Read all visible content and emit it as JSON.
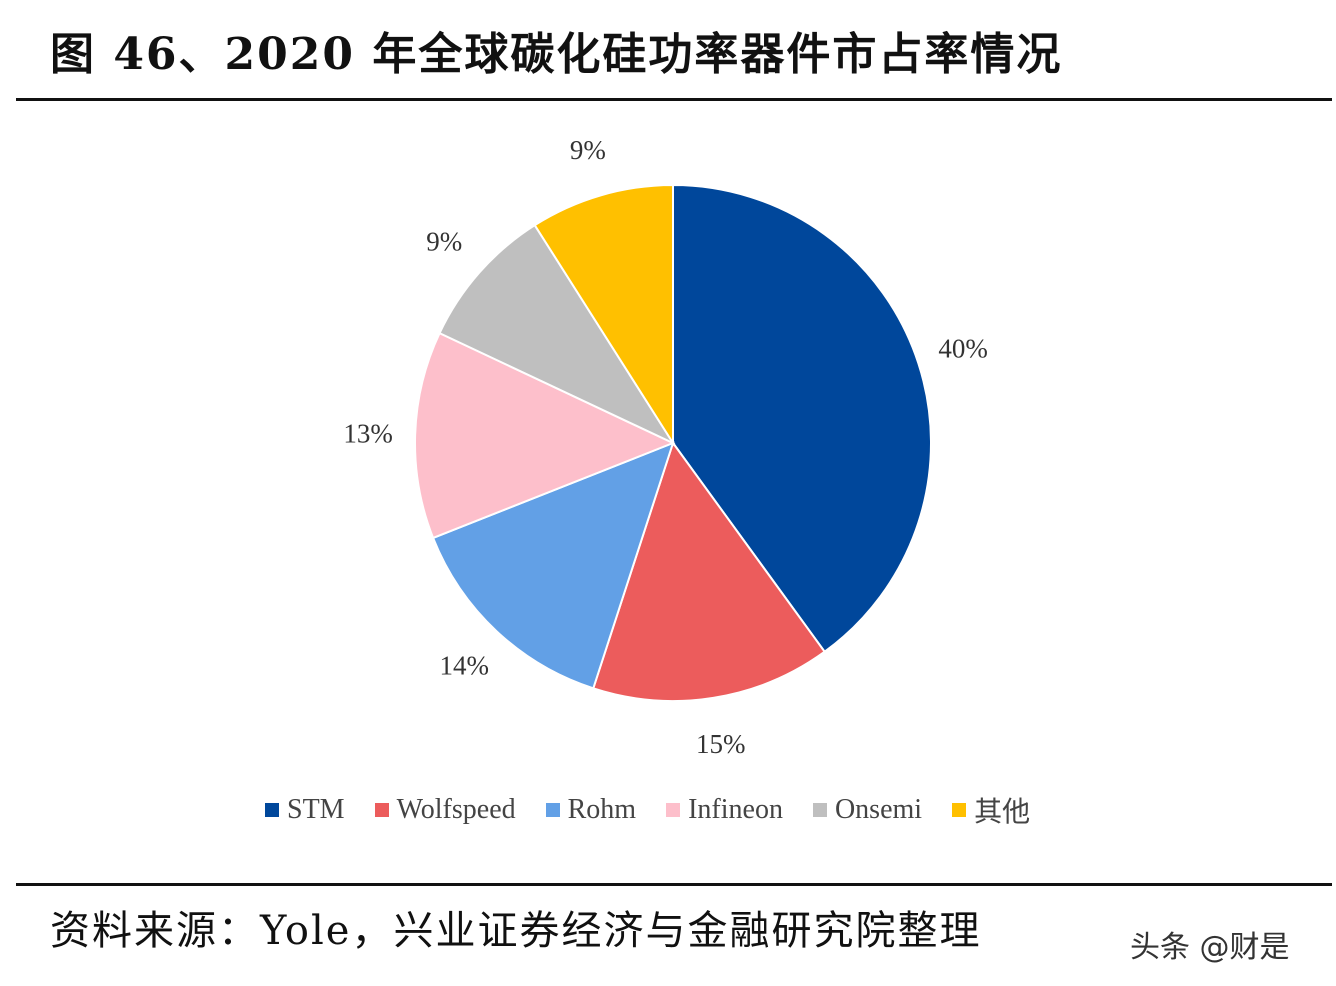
{
  "title": "图 46、2020 年全球碳化硅功率器件市占率情况",
  "source": "资料来源：Yole，兴业证券经济与金融研究院整理",
  "watermark": "头条 @财是",
  "chart_data": {
    "type": "pie",
    "title": "图 46、2020 年全球碳化硅功率器件市占率情况",
    "start": "top",
    "direction": "clockwise",
    "legend_position": "bottom",
    "slices": [
      {
        "name": "STM",
        "value": 40,
        "label": "40%",
        "color": "#00479b"
      },
      {
        "name": "Wolfspeed",
        "value": 15,
        "label": "15%",
        "color": "#ec5c5c"
      },
      {
        "name": "Rohm",
        "value": 14,
        "label": "14%",
        "color": "#62a0e6"
      },
      {
        "name": "Infineon",
        "value": 13,
        "label": "13%",
        "color": "#fdbfcb"
      },
      {
        "name": "Onsemi",
        "value": 9,
        "label": "9%",
        "color": "#bfbfbf"
      },
      {
        "name": "其他",
        "value": 9,
        "label": "9%",
        "color": "#ffc000"
      }
    ]
  }
}
